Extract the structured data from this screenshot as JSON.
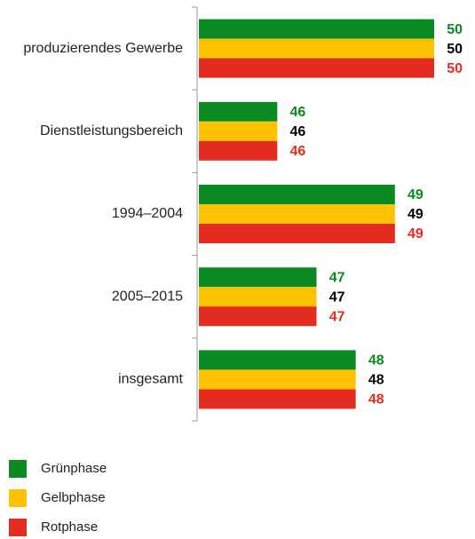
{
  "chart_data": {
    "type": "bar",
    "orientation": "horizontal",
    "categories": [
      "produzierendes Gewerbe",
      "Dienstleistungsbereich",
      "1994–2004",
      "2005–2015",
      "insgesamt"
    ],
    "series": [
      {
        "name": "Grünphase",
        "color": "#0a8a23",
        "label_color": "#0a8a23",
        "values": [
          50,
          46,
          49,
          47,
          48
        ]
      },
      {
        "name": "Gelbphase",
        "color": "#ffc200",
        "label_color": "#000000",
        "values": [
          50,
          46,
          49,
          47,
          48
        ]
      },
      {
        "name": "Rotphase",
        "color": "#e42b1f",
        "label_color": "#e42b1f",
        "values": [
          50,
          46,
          49,
          47,
          48
        ]
      }
    ],
    "xlim": [
      44,
      50
    ],
    "legend": "bottom-left"
  }
}
